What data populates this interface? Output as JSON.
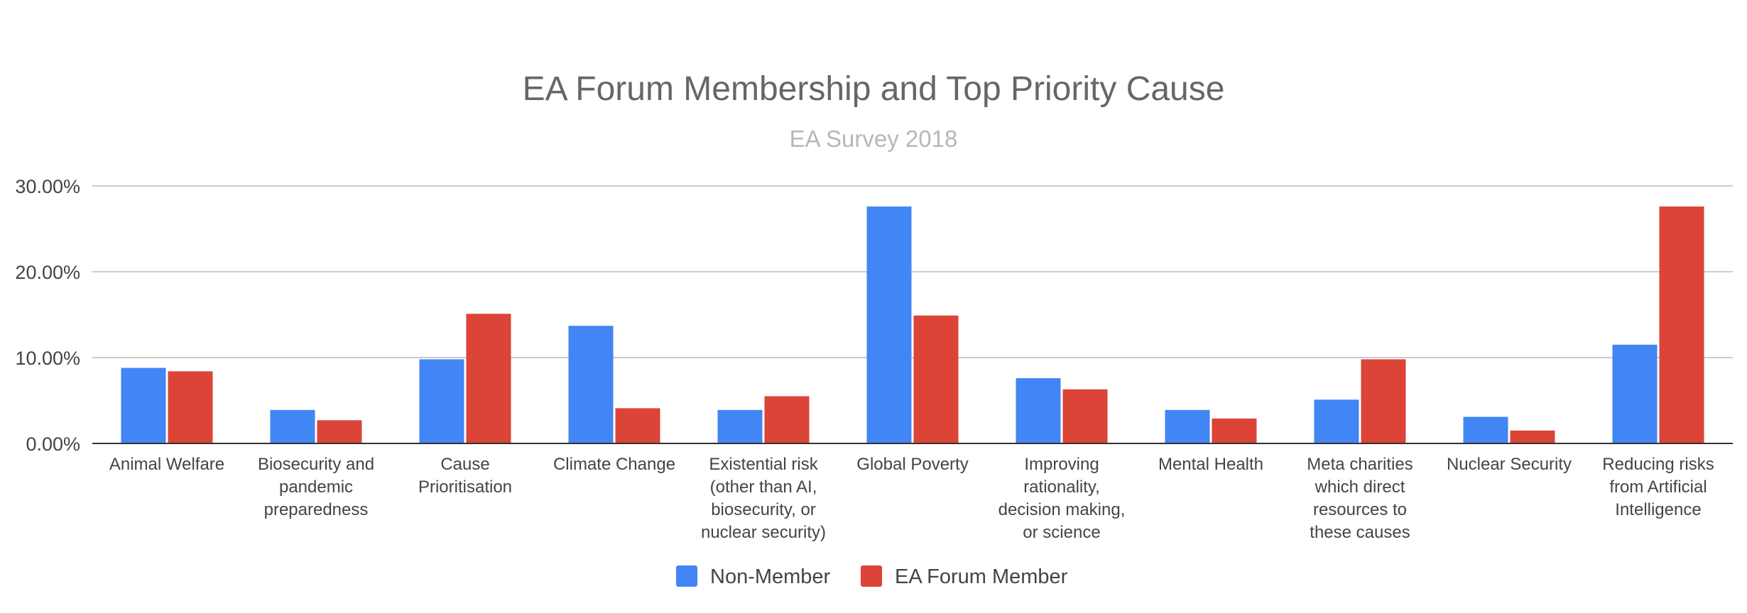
{
  "chart_data": {
    "type": "bar",
    "title": "EA Forum Membership and Top Priority Cause",
    "subtitle": "EA Survey 2018",
    "xlabel": "",
    "ylabel": "",
    "ylim": [
      0,
      30
    ],
    "y_ticks": [
      "0.00%",
      "10.00%",
      "20.00%",
      "30.00%"
    ],
    "grid": true,
    "legend_position": "bottom",
    "categories": [
      [
        "Animal Welfare"
      ],
      [
        "Biosecurity and",
        "pandemic",
        "preparedness"
      ],
      [
        "Cause",
        "Prioritisation"
      ],
      [
        "Climate Change"
      ],
      [
        "Existential risk",
        "(other than AI,",
        "biosecurity, or",
        "nuclear security)"
      ],
      [
        "Global Poverty"
      ],
      [
        "Improving",
        "rationality,",
        "decision making,",
        "or science"
      ],
      [
        "Mental Health"
      ],
      [
        "Meta charities",
        "which direct",
        "resources to",
        "these causes"
      ],
      [
        "Nuclear Security"
      ],
      [
        "Reducing risks",
        "from Artificial",
        "Intelligence"
      ]
    ],
    "series": [
      {
        "name": "Non-Member",
        "color": "#4285f4",
        "values": [
          8.8,
          3.9,
          9.8,
          13.7,
          3.9,
          27.6,
          7.6,
          3.9,
          5.1,
          3.1,
          11.5
        ]
      },
      {
        "name": "EA Forum Member",
        "color": "#db4437",
        "values": [
          8.4,
          2.7,
          15.1,
          4.1,
          5.5,
          14.9,
          6.3,
          2.9,
          9.8,
          1.5,
          27.6
        ]
      }
    ]
  }
}
